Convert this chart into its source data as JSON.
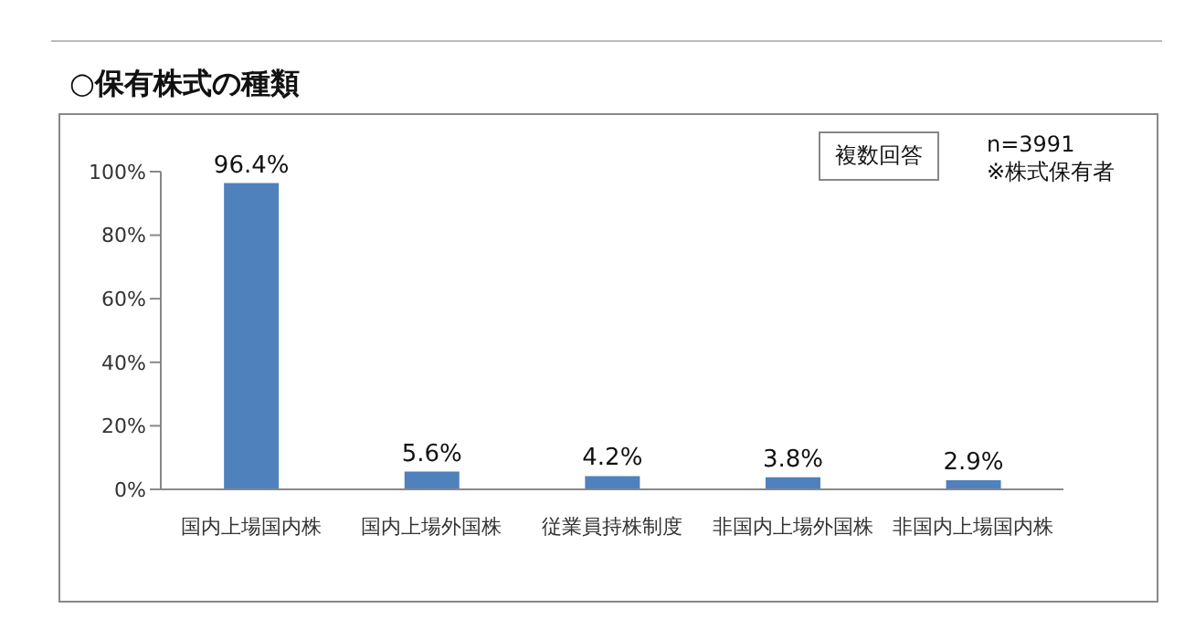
{
  "chart_data": {
    "type": "bar",
    "title": "○保有株式の種類",
    "categories": [
      "国内上場国内株",
      "国内上場外国株",
      "従業員持株制度",
      "非国内上場外国株",
      "非国内上場国内株"
    ],
    "values": [
      96.4,
      5.6,
      4.2,
      3.8,
      2.9
    ],
    "value_labels": [
      "96.4%",
      "5.6%",
      "4.2%",
      "3.8%",
      "2.9%"
    ],
    "color": "#4f81bd",
    "ylim": [
      0,
      100
    ],
    "yticks": [
      {
        "value": 0,
        "label": "0%"
      },
      {
        "value": 20,
        "label": "20%"
      },
      {
        "value": 40,
        "label": "40%"
      },
      {
        "value": 60,
        "label": "60%"
      },
      {
        "value": 80,
        "label": "80%"
      },
      {
        "value": 100,
        "label": "100%"
      }
    ],
    "grid": false,
    "legend": false,
    "annotations": [
      "複数回答",
      "n=3991",
      "※株式保有者"
    ]
  }
}
